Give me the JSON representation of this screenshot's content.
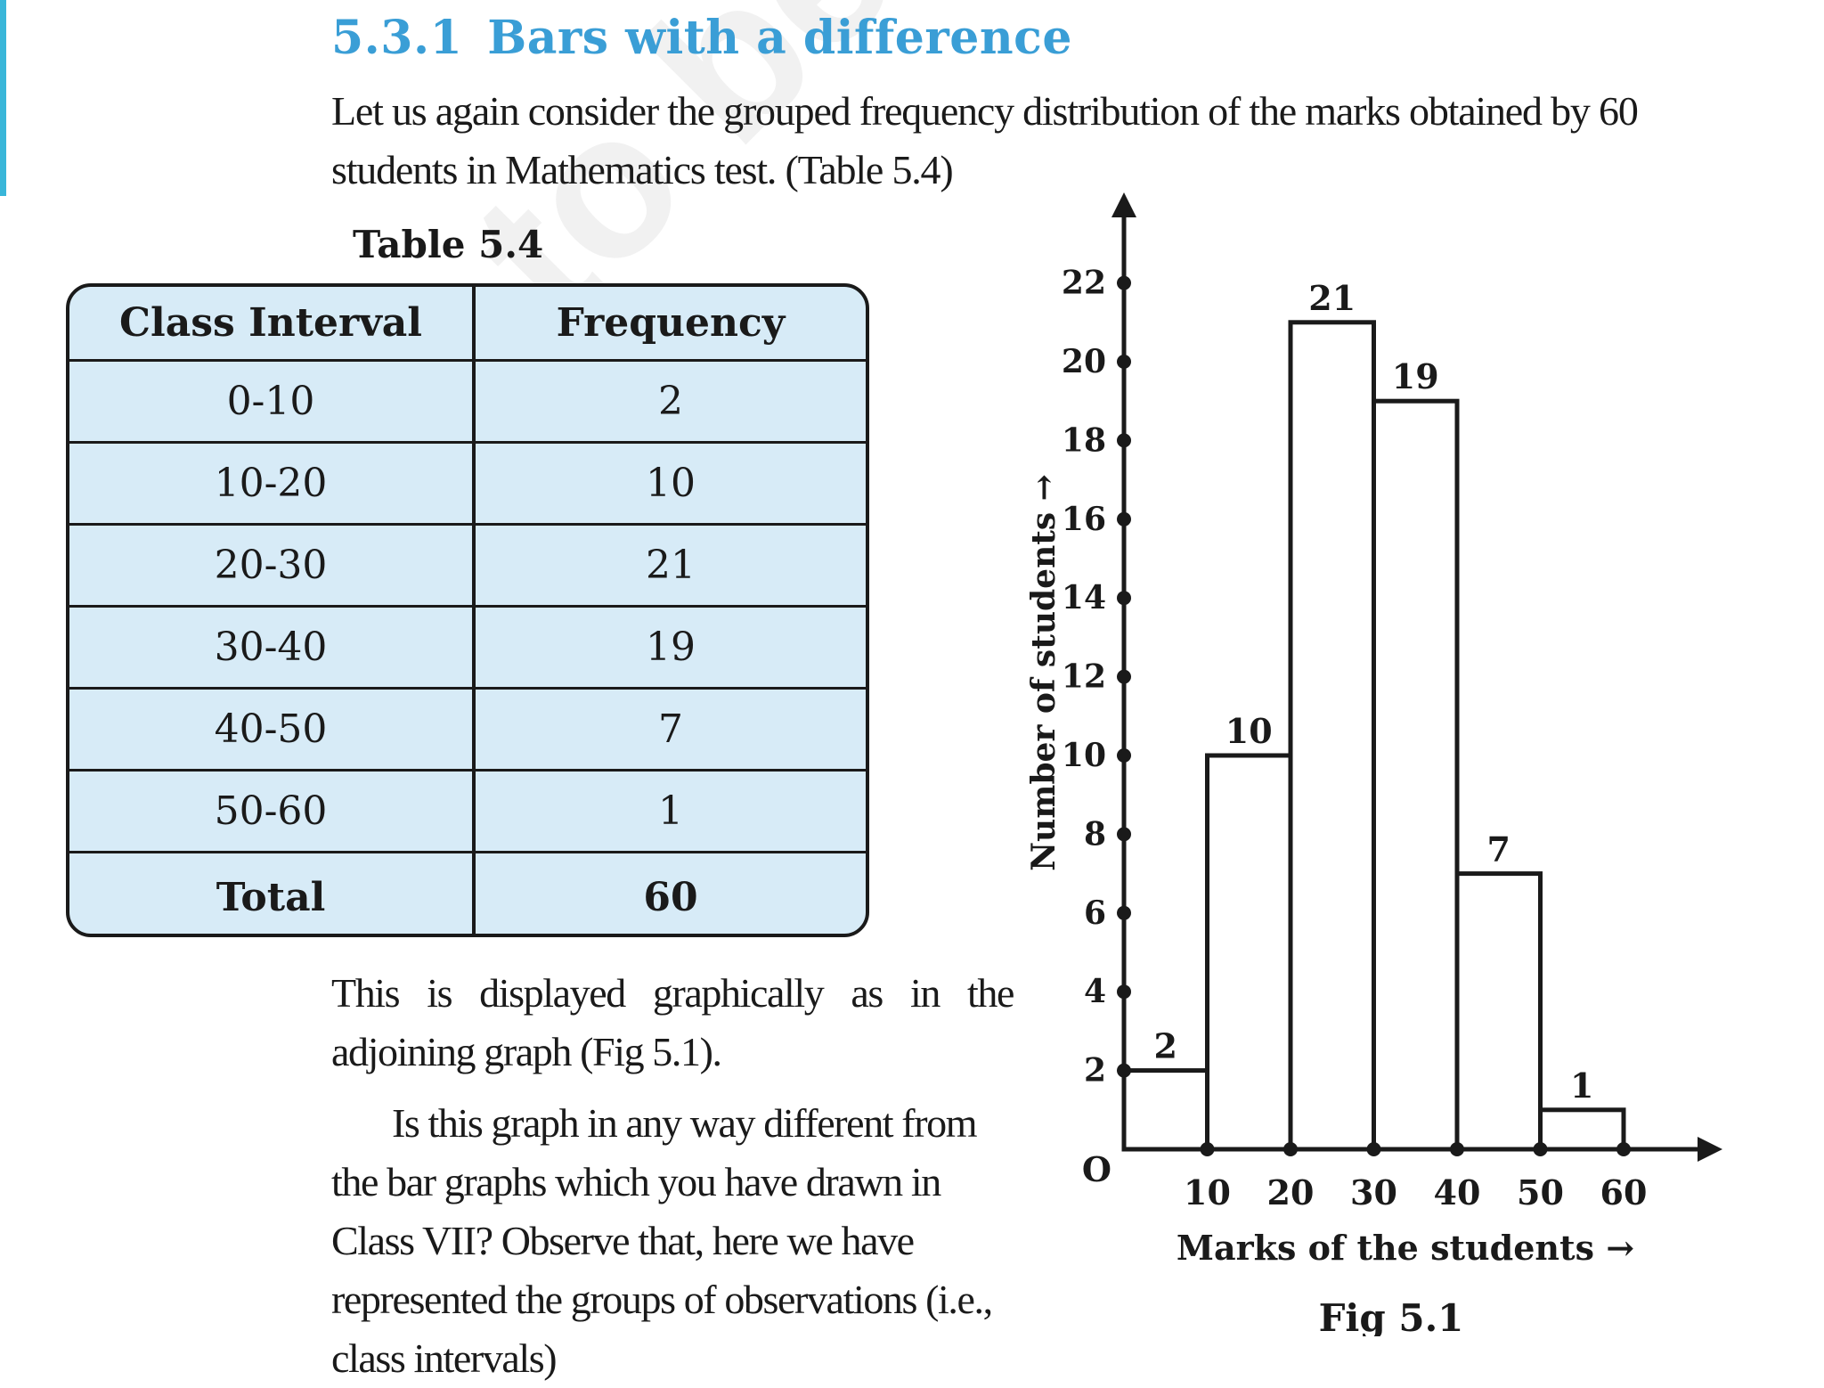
{
  "section": {
    "number": "5.3.1",
    "title": "Bars with a difference"
  },
  "intro_text": "Let us again consider the grouped frequency distribution of the marks obtained by 60 students in Mathematics test. (Table 5.4)",
  "watermark": "not to be rep",
  "table": {
    "caption": "Table 5.4",
    "headers": [
      "Class Interval",
      "Frequency"
    ],
    "rows": [
      [
        "0-10",
        "2"
      ],
      [
        "10-20",
        "10"
      ],
      [
        "20-30",
        "21"
      ],
      [
        "30-40",
        "19"
      ],
      [
        "40-50",
        "7"
      ],
      [
        "50-60",
        "1"
      ]
    ],
    "total": [
      "Total",
      "60"
    ]
  },
  "paragraph1": "This is displayed graphically as in the adjoining graph (Fig 5.1).",
  "paragraph2": "Is this graph in any way different from the bar graphs which you have drawn in Class VII? Observe that, here we have represented the groups of observations (i.e., class intervals)",
  "colors": {
    "heading": "#3a9ed6",
    "table_fill": "#d7ebf7",
    "edge_bar": "#39b6d9"
  },
  "chart_data": {
    "type": "bar",
    "subtype": "histogram",
    "bin_edges": [
      0,
      10,
      20,
      30,
      40,
      50,
      60
    ],
    "values": [
      2,
      10,
      21,
      19,
      7,
      1
    ],
    "data_labels": [
      "2",
      "10",
      "21",
      "19",
      "7",
      "1"
    ],
    "x_ticks": [
      "10",
      "20",
      "30",
      "40",
      "50",
      "60"
    ],
    "y_ticks": [
      "2",
      "4",
      "6",
      "8",
      "10",
      "12",
      "14",
      "16",
      "18",
      "20",
      "22"
    ],
    "origin_label": "O",
    "xlabel": "Marks of the students →",
    "ylabel": "Number of students →",
    "caption": "Fig 5.1",
    "xlim": [
      0,
      60
    ],
    "ylim": [
      0,
      22
    ]
  }
}
